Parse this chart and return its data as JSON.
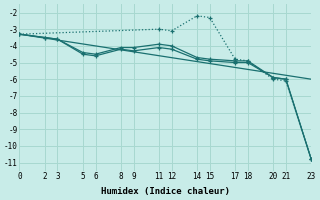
{
  "xlabel": "Humidex (Indice chaleur)",
  "background_color": "#c8ece8",
  "grid_color": "#a8d8d0",
  "line_color": "#1a7070",
  "xlim": [
    0,
    23
  ],
  "ylim": [
    -11.5,
    -1.5
  ],
  "xticks": [
    0,
    2,
    3,
    5,
    6,
    8,
    9,
    11,
    12,
    14,
    15,
    17,
    18,
    20,
    21,
    23
  ],
  "yticks": [
    -2,
    -3,
    -4,
    -5,
    -6,
    -7,
    -8,
    -9,
    -10,
    -11
  ],
  "line_dotted": {
    "x": [
      0,
      11,
      12,
      14,
      15,
      17,
      18,
      20,
      21,
      23
    ],
    "y": [
      -3.3,
      -3.0,
      -3.1,
      -2.2,
      -2.3,
      -4.8,
      -4.9,
      -6.0,
      -6.1,
      -10.8
    ]
  },
  "line_solid1": {
    "x": [
      0,
      2,
      3,
      5,
      6,
      8,
      9,
      11,
      12,
      14,
      15,
      17,
      18,
      20,
      21,
      23
    ],
    "y": [
      -3.3,
      -3.5,
      -3.6,
      -4.4,
      -4.5,
      -4.1,
      -4.1,
      -3.9,
      -4.0,
      -4.7,
      -4.8,
      -4.9,
      -4.9,
      -5.9,
      -6.0,
      -10.8
    ]
  },
  "line_solid2": {
    "x": [
      0,
      2,
      3,
      5,
      6,
      8,
      9,
      11,
      12,
      14,
      15,
      17,
      18,
      20,
      21,
      23
    ],
    "y": [
      -3.3,
      -3.5,
      -3.6,
      -4.5,
      -4.6,
      -4.2,
      -4.3,
      -4.1,
      -4.2,
      -4.8,
      -4.9,
      -5.0,
      -5.0,
      -5.9,
      -6.0,
      -10.8
    ]
  },
  "line_diagonal": {
    "x": [
      0,
      23
    ],
    "y": [
      -3.3,
      -6.0
    ]
  }
}
